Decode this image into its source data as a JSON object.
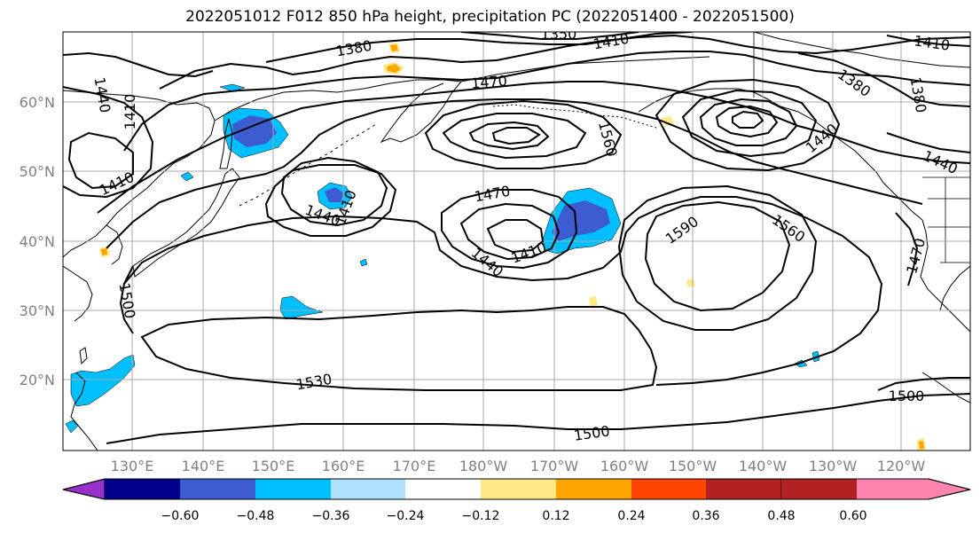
{
  "title": "2022051012 F012 850 hPa height, precipitation PC (2022051400 - 2022051500)",
  "lat_labels": [
    "60°N",
    "50°N",
    "40°N",
    "30°N",
    "20°N"
  ],
  "lon_labels": [
    "130°E",
    "140°E",
    "150°E",
    "160°E",
    "170°E",
    "180°W",
    "170°W",
    "160°W",
    "150°W",
    "140°W",
    "130°W",
    "120°W"
  ],
  "contour_labels": [
    "1350",
    "1380",
    "1410",
    "1470",
    "1440",
    "1410",
    "1560",
    "1380",
    "1380",
    "1410",
    "1440",
    "1470",
    "1440",
    "1410",
    "1410",
    "1440",
    "1410",
    "1590",
    "1560",
    "1470",
    "1500",
    "1530",
    "1500",
    "1500",
    "1440"
  ],
  "colorbar": {
    "ticks": [
      "−0.60",
      "−0.48",
      "−0.36",
      "−0.24",
      "−0.12",
      "0.12",
      "0.24",
      "0.36",
      "0.48",
      "0.60"
    ],
    "colors": [
      "#9932cc",
      "#00008b",
      "#3c5cd0",
      "#00bfff",
      "#b0e2ff",
      "#ffffff",
      "#ffe987",
      "#ffa500",
      "#ff4500",
      "#b22222",
      "#ff85b0"
    ]
  },
  "colors": {
    "neg_light": "#00bfff",
    "neg_dark": "#3c5cd0",
    "pos_light": "#ffe987",
    "pos_dark": "#ffa500"
  }
}
